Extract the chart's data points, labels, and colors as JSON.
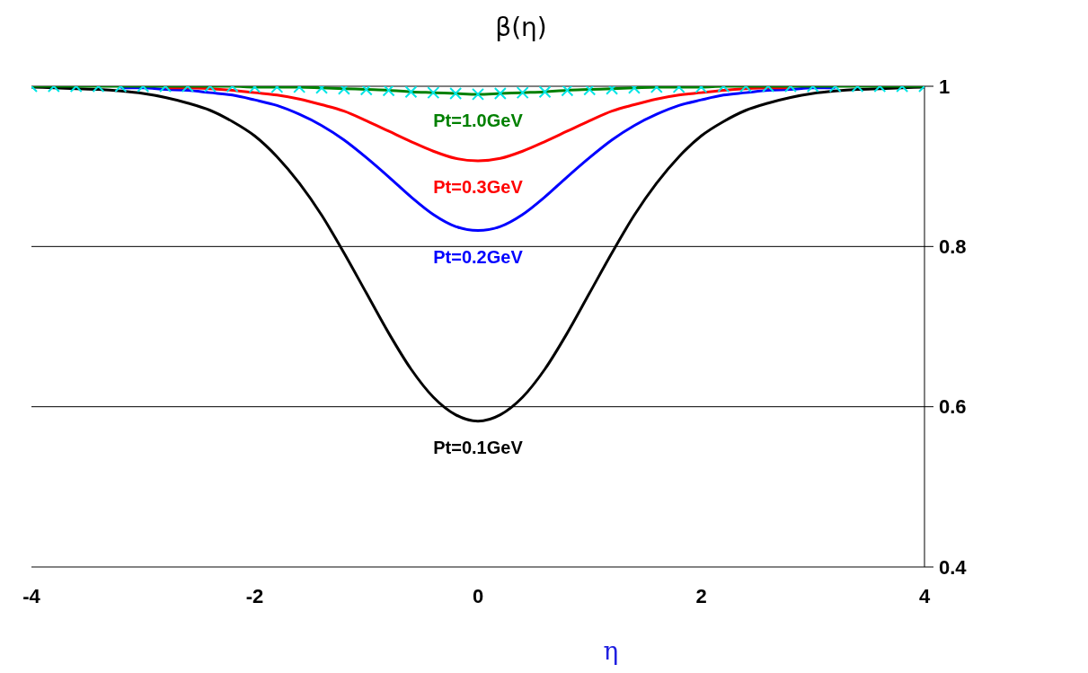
{
  "chart_data": {
    "type": "line",
    "title": "β(η)",
    "xlabel": "η",
    "x": [
      -4,
      -3.8,
      -3.6,
      -3.4,
      -3.2,
      -3,
      -2.8,
      -2.6,
      -2.4,
      -2.2,
      -2,
      -1.8,
      -1.6,
      -1.4,
      -1.2,
      -1,
      -0.8,
      -0.6,
      -0.4,
      -0.2,
      0,
      0.2,
      0.4,
      0.6,
      0.8,
      1,
      1.2,
      1.4,
      1.6,
      1.8,
      2,
      2.2,
      2.4,
      2.6,
      2.8,
      3,
      3.2,
      3.4,
      3.6,
      3.8,
      4
    ],
    "series": [
      {
        "name": "Pt=0.1GeV",
        "color": "#000000",
        "values": [
          0.999,
          0.998,
          0.997,
          0.996,
          0.994,
          0.991,
          0.986,
          0.979,
          0.97,
          0.956,
          0.938,
          0.912,
          0.879,
          0.839,
          0.792,
          0.742,
          0.692,
          0.647,
          0.612,
          0.59,
          0.582,
          0.59,
          0.612,
          0.647,
          0.692,
          0.742,
          0.792,
          0.839,
          0.879,
          0.912,
          0.938,
          0.956,
          0.97,
          0.979,
          0.986,
          0.991,
          0.994,
          0.996,
          0.997,
          0.998,
          0.999
        ]
      },
      {
        "name": "Pt=0.2GeV",
        "color": "#0000ff",
        "values": [
          null,
          null,
          null,
          null,
          0.998,
          0.998,
          0.996,
          0.995,
          0.992,
          0.989,
          0.983,
          0.976,
          0.965,
          0.951,
          0.933,
          0.911,
          0.887,
          0.862,
          0.84,
          0.825,
          0.82,
          0.825,
          0.84,
          0.862,
          0.887,
          0.911,
          0.933,
          0.951,
          0.965,
          0.976,
          0.983,
          0.989,
          0.992,
          0.995,
          0.996,
          0.998,
          0.998,
          null,
          null,
          null,
          null
        ]
      },
      {
        "name": "Pt=0.3GeV",
        "color": "#ff0000",
        "values": [
          null,
          null,
          null,
          null,
          null,
          null,
          0.998,
          0.998,
          0.997,
          0.995,
          0.992,
          0.989,
          0.984,
          0.977,
          0.969,
          0.957,
          0.944,
          0.931,
          0.919,
          0.91,
          0.907,
          0.91,
          0.919,
          0.931,
          0.944,
          0.957,
          0.969,
          0.977,
          0.984,
          0.989,
          0.992,
          0.995,
          0.997,
          0.998,
          0.998,
          null,
          null,
          null,
          null,
          null,
          null
        ]
      },
      {
        "name": "Pt=1.0GeV",
        "color": "#008000",
        "values": [
          1.0,
          1.0,
          1.0,
          1.0,
          1.0,
          1.0,
          1.0,
          1.0,
          1.0,
          1.0,
          0.999,
          0.999,
          0.999,
          0.998,
          0.997,
          0.996,
          0.995,
          0.993,
          0.992,
          0.991,
          0.99,
          0.991,
          0.992,
          0.993,
          0.995,
          0.996,
          0.997,
          0.998,
          0.999,
          0.999,
          0.999,
          1.0,
          1.0,
          1.0,
          1.0,
          1.0,
          1.0,
          1.0,
          1.0,
          1.0,
          1.0
        ]
      },
      {
        "type": "scatter",
        "color": "#00e5e5",
        "marker": "cross",
        "values": [
          1.0,
          1.0,
          1.0,
          1.0,
          1.0,
          1.0,
          1.0,
          1.0,
          1.0,
          1.0,
          0.999,
          0.999,
          0.999,
          0.998,
          0.997,
          0.996,
          0.995,
          0.993,
          0.992,
          0.991,
          0.99,
          0.991,
          0.992,
          0.993,
          0.995,
          0.996,
          0.997,
          0.998,
          0.999,
          0.999,
          0.999,
          1.0,
          1.0,
          1.0,
          1.0,
          1.0,
          1.0,
          1.0,
          1.0,
          1.0,
          1.0
        ]
      }
    ],
    "xlim": [
      -4,
      4
    ],
    "xticks": [
      -4,
      -2,
      0,
      2,
      4
    ],
    "ylim": [
      0.4,
      1
    ],
    "yticks": [
      0.4,
      0.6,
      0.8,
      1
    ],
    "grid": "y",
    "legend": false,
    "marker": "none",
    "line_style": "solid"
  }
}
